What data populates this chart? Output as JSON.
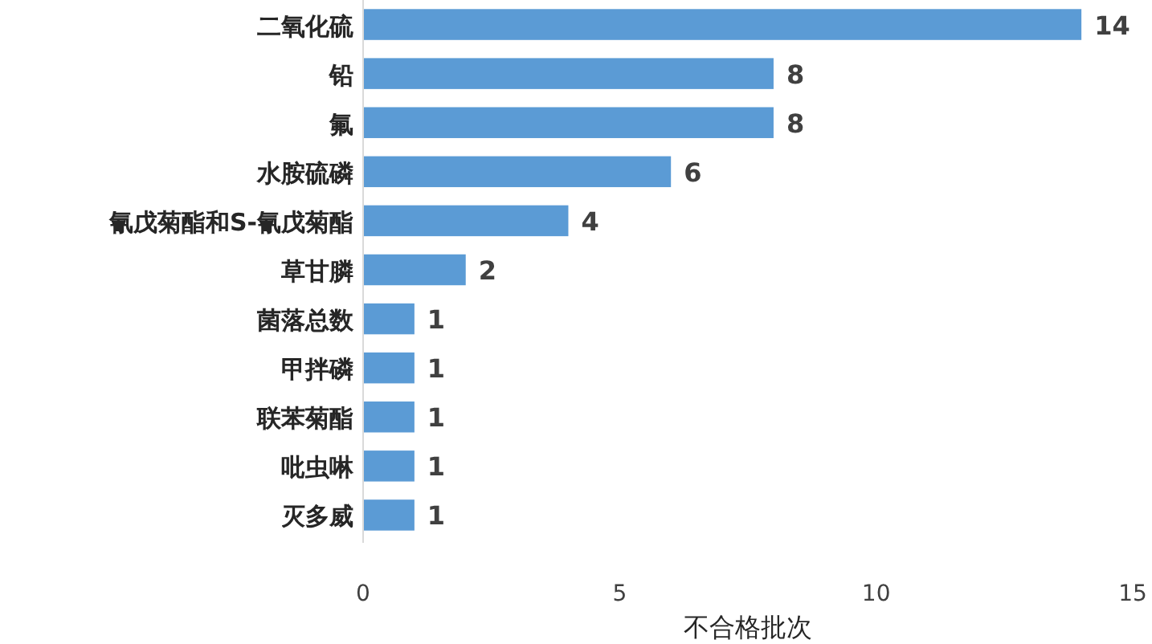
{
  "chart_data": {
    "type": "bar",
    "orientation": "horizontal",
    "xlabel": "不合格批次",
    "categories": [
      "二氧化硫",
      "铅",
      "氟",
      "水胺硫磷",
      "氰戊菊酯和S-氰戊菊酯",
      "草甘膦",
      "菌落总数",
      "甲拌磷",
      "联苯菊酯",
      "吡虫啉",
      "灭多威"
    ],
    "values": [
      14,
      8,
      8,
      6,
      4,
      2,
      1,
      1,
      1,
      1,
      1
    ],
    "color": "#5b9bd5",
    "xlim": [
      0,
      15
    ],
    "xticks": [
      0,
      5,
      10,
      15
    ],
    "data_labels": true,
    "grid": false
  }
}
